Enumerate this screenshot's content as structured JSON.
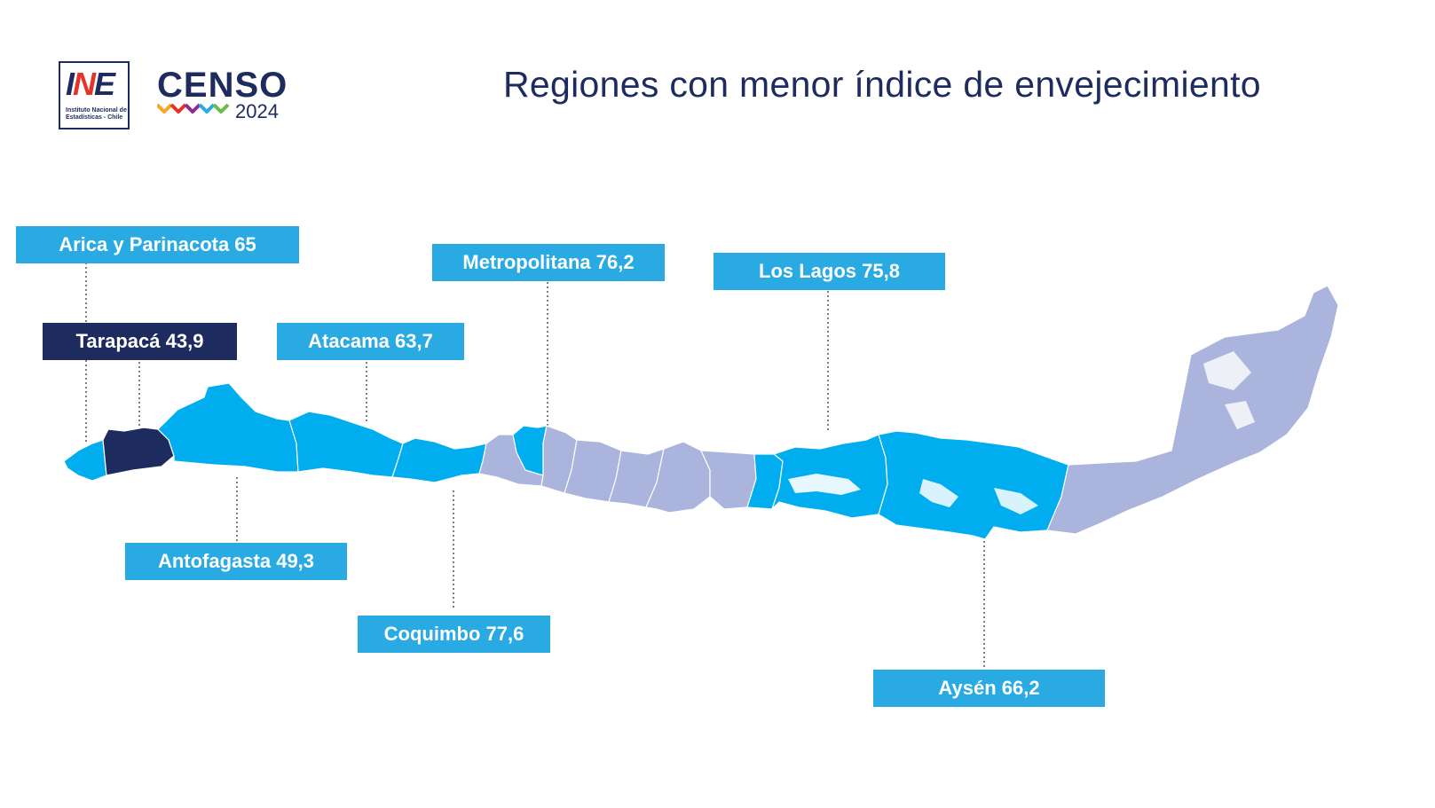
{
  "header": {
    "logo_ine": {
      "mark": "INE",
      "subtitle": "Instituto Nacional de Estadísticas - Chile"
    },
    "logo_censo": {
      "word": "CENSO",
      "year": "2024"
    },
    "title": "Regiones con menor índice de envejecimiento"
  },
  "colors": {
    "highlight": "#00aeef",
    "lowest": "#1e2b5e",
    "other": "#aab4dc",
    "label_bg": "#2aaae2",
    "title": "#1e2b5e"
  },
  "regions": {
    "arica": {
      "name": "Arica y Parinacota",
      "value": "65",
      "text": "Arica y Parinacota 65"
    },
    "tarapaca": {
      "name": "Tarapacá",
      "value": "43,9",
      "text": "Tarapacá 43,9"
    },
    "atacama": {
      "name": "Atacama",
      "value": "63,7",
      "text": "Atacama 63,7"
    },
    "metropolitana": {
      "name": "Metropolitana",
      "value": "76,2",
      "text": "Metropolitana 76,2"
    },
    "los_lagos": {
      "name": "Los Lagos",
      "value": "75,8",
      "text": "Los Lagos 75,8"
    },
    "antofagasta": {
      "name": "Antofagasta",
      "value": "49,3",
      "text": "Antofagasta 49,3"
    },
    "coquimbo": {
      "name": "Coquimbo",
      "value": "77,6",
      "text": "Coquimbo 77,6"
    },
    "aysen": {
      "name": "Aysén",
      "value": "66,2",
      "text": "Aysén 66,2"
    }
  }
}
